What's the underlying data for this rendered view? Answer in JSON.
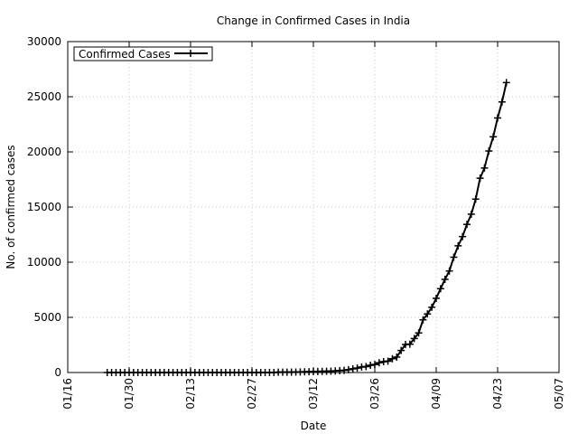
{
  "chart_data": {
    "type": "line",
    "title": "Change in Confirmed Cases in India",
    "xlabel": "Date",
    "ylabel": "No. of confirmed cases",
    "xlim": [
      "2020-01-16",
      "2020-05-07"
    ],
    "ylim": [
      0,
      30000
    ],
    "x_ticks": [
      "01/16",
      "01/30",
      "02/13",
      "02/27",
      "03/12",
      "03/26",
      "04/09",
      "04/23",
      "05/07"
    ],
    "y_ticks": [
      "0",
      "5000",
      "10000",
      "15000",
      "20000",
      "25000",
      "30000"
    ],
    "grid": true,
    "legend": {
      "placement": "top-left",
      "entries": [
        "Confirmed Cases"
      ]
    },
    "series": [
      {
        "name": "Confirmed Cases",
        "color": "#000000",
        "x": [
          "2020-01-25",
          "2020-01-26",
          "2020-01-27",
          "2020-01-28",
          "2020-01-29",
          "2020-01-30",
          "2020-01-31",
          "2020-02-01",
          "2020-02-02",
          "2020-02-03",
          "2020-02-04",
          "2020-02-05",
          "2020-02-06",
          "2020-02-07",
          "2020-02-08",
          "2020-02-09",
          "2020-02-10",
          "2020-02-11",
          "2020-02-12",
          "2020-02-13",
          "2020-02-14",
          "2020-02-15",
          "2020-02-16",
          "2020-02-17",
          "2020-02-18",
          "2020-02-19",
          "2020-02-20",
          "2020-02-21",
          "2020-02-22",
          "2020-02-23",
          "2020-02-24",
          "2020-02-25",
          "2020-02-26",
          "2020-02-27",
          "2020-02-28",
          "2020-02-29",
          "2020-03-01",
          "2020-03-02",
          "2020-03-03",
          "2020-03-04",
          "2020-03-05",
          "2020-03-06",
          "2020-03-07",
          "2020-03-08",
          "2020-03-09",
          "2020-03-10",
          "2020-03-11",
          "2020-03-12",
          "2020-03-13",
          "2020-03-14",
          "2020-03-15",
          "2020-03-16",
          "2020-03-17",
          "2020-03-18",
          "2020-03-19",
          "2020-03-20",
          "2020-03-21",
          "2020-03-22",
          "2020-03-23",
          "2020-03-24",
          "2020-03-25",
          "2020-03-26",
          "2020-03-27",
          "2020-03-28",
          "2020-03-29",
          "2020-03-30",
          "2020-03-31",
          "2020-04-01",
          "2020-04-02",
          "2020-04-03",
          "2020-04-04",
          "2020-04-05",
          "2020-04-06",
          "2020-04-07",
          "2020-04-08",
          "2020-04-09",
          "2020-04-10",
          "2020-04-11",
          "2020-04-12",
          "2020-04-13",
          "2020-04-14",
          "2020-04-15",
          "2020-04-16",
          "2020-04-17",
          "2020-04-18",
          "2020-04-19",
          "2020-04-20",
          "2020-04-21",
          "2020-04-22",
          "2020-04-23",
          "2020-04-24",
          "2020-04-25"
        ],
        "values": [
          0,
          0,
          0,
          0,
          0,
          1,
          1,
          1,
          2,
          3,
          3,
          3,
          3,
          3,
          3,
          3,
          3,
          3,
          3,
          3,
          3,
          3,
          3,
          3,
          3,
          3,
          3,
          3,
          3,
          3,
          3,
          3,
          3,
          3,
          3,
          3,
          3,
          5,
          5,
          28,
          30,
          31,
          34,
          39,
          48,
          63,
          71,
          81,
          91,
          102,
          112,
          126,
          146,
          171,
          198,
          256,
          334,
          403,
          499,
          536,
          657,
          727,
          887,
          987,
          1024,
          1251,
          1397,
          1998,
          2543,
          2567,
          3082,
          3588,
          4778,
          5311,
          5916,
          6725,
          7598,
          8446,
          9205,
          10453,
          11487,
          12322,
          13430,
          14352,
          15722,
          17615,
          18539,
          20080,
          21370,
          23077,
          24530,
          26283
        ]
      }
    ]
  }
}
